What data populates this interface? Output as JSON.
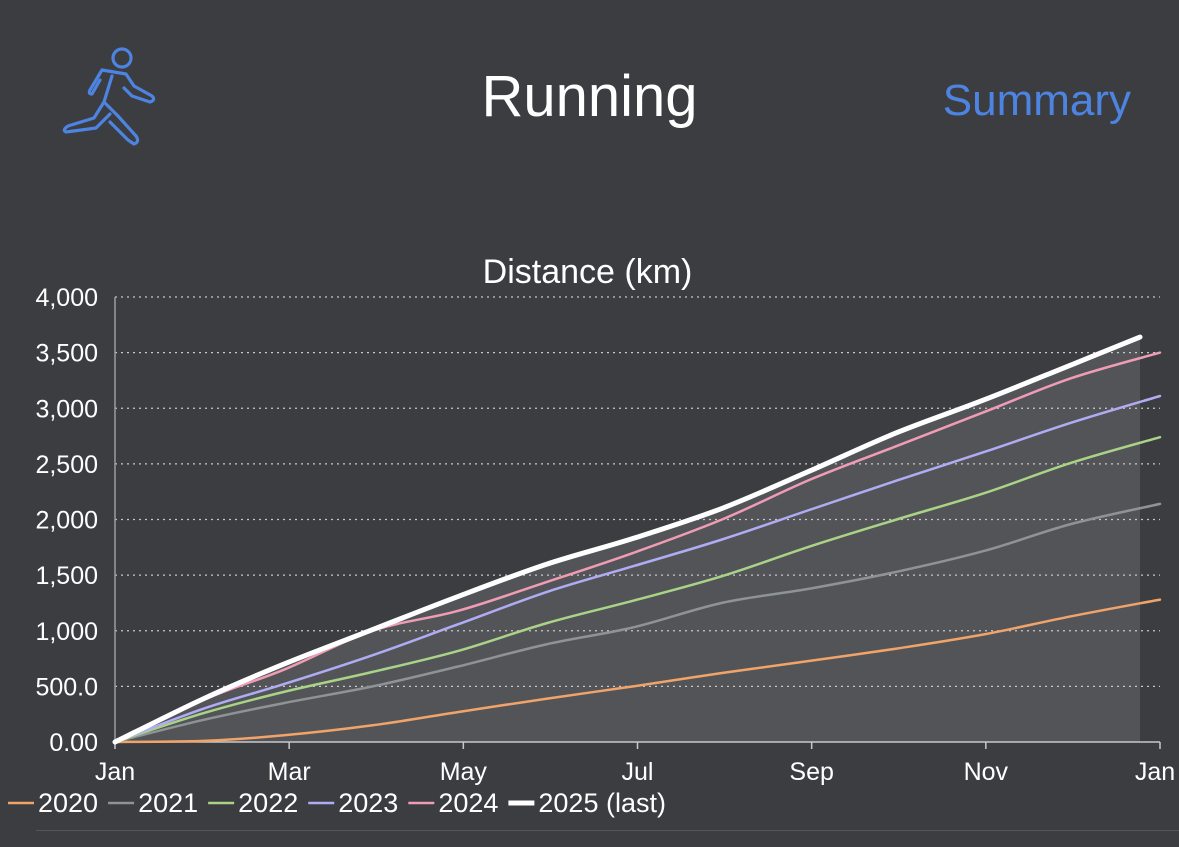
{
  "header": {
    "title": "Running",
    "summary_label": "Summary",
    "icon": "running-figure-icon",
    "icon_color": "#4d84e2"
  },
  "chart_data": {
    "type": "line",
    "title": "Distance (km)",
    "xlabel": "",
    "ylabel": "",
    "x_tick_labels": [
      "Jan",
      "Mar",
      "May",
      "Jul",
      "Sep",
      "Nov",
      "Jan"
    ],
    "y_tick_labels": [
      "0.00",
      "500.0",
      "1,000",
      "1,500",
      "2,000",
      "2,500",
      "3,000",
      "3,500",
      "4,000"
    ],
    "ylim": [
      0,
      4000
    ],
    "xlim_days": [
      0,
      365
    ],
    "grid": "horizontal dotted",
    "legend_position": "bottom",
    "series": [
      {
        "name": "2020",
        "color": "#f0a46a",
        "width": 2.5,
        "x": [
          0,
          31,
          59,
          90,
          120,
          151,
          181,
          212,
          243,
          273,
          304,
          334,
          365
        ],
        "y": [
          0,
          10,
          60,
          150,
          270,
          390,
          500,
          620,
          730,
          840,
          970,
          1130,
          1280
        ]
      },
      {
        "name": "2021",
        "color": "#8e9396",
        "width": 2.5,
        "x": [
          0,
          31,
          59,
          90,
          120,
          151,
          181,
          212,
          243,
          273,
          304,
          334,
          365
        ],
        "y": [
          0,
          200,
          350,
          500,
          680,
          880,
          1030,
          1250,
          1380,
          1530,
          1720,
          1960,
          2140
        ]
      },
      {
        "name": "2022",
        "color": "#a9d386",
        "width": 2.5,
        "x": [
          0,
          31,
          59,
          90,
          120,
          151,
          181,
          212,
          243,
          273,
          304,
          334,
          365
        ],
        "y": [
          0,
          260,
          450,
          630,
          820,
          1070,
          1270,
          1490,
          1760,
          2000,
          2240,
          2510,
          2740
        ]
      },
      {
        "name": "2023",
        "color": "#b0acf4",
        "width": 2.5,
        "x": [
          0,
          31,
          59,
          90,
          120,
          151,
          181,
          212,
          243,
          273,
          304,
          334,
          365
        ],
        "y": [
          0,
          300,
          520,
          780,
          1060,
          1350,
          1580,
          1820,
          2090,
          2350,
          2610,
          2870,
          3110
        ]
      },
      {
        "name": "2024",
        "color": "#ef9cb5",
        "width": 2.5,
        "x": [
          0,
          31,
          59,
          90,
          120,
          151,
          181,
          212,
          243,
          273,
          304,
          334,
          365
        ],
        "y": [
          0,
          380,
          650,
          1000,
          1180,
          1440,
          1700,
          2000,
          2360,
          2660,
          2970,
          3270,
          3500
        ]
      },
      {
        "name": "2025 (last)",
        "color": "#ffffff",
        "width": 5,
        "x": [
          0,
          31,
          59,
          90,
          120,
          151,
          181,
          212,
          243,
          273,
          304,
          334,
          358
        ],
        "y": [
          0,
          390,
          700,
          1010,
          1310,
          1600,
          1830,
          2100,
          2440,
          2780,
          3080,
          3390,
          3640
        ]
      }
    ],
    "shaded_area": {
      "series": "2025 (last)",
      "color": "#535458"
    }
  }
}
